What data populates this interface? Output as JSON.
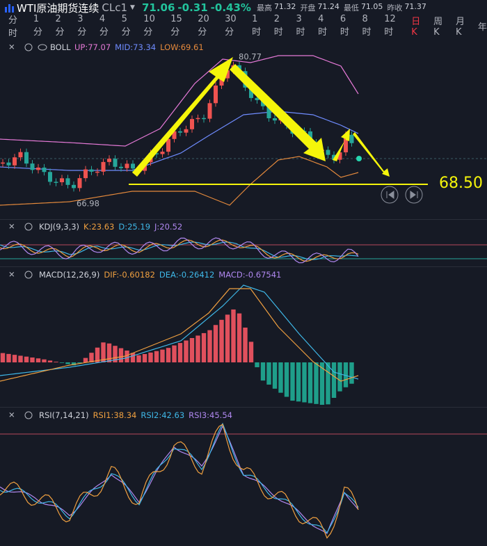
{
  "header": {
    "title": "WTI原油期货连续",
    "symbol": "CLc1",
    "price": "71.06",
    "change": "-0.31",
    "change_pct": "-0.43%",
    "stats": [
      {
        "label": "最高",
        "value": "71.32"
      },
      {
        "label": "开盘",
        "value": "71.24"
      },
      {
        "label": "最低",
        "value": "71.05"
      },
      {
        "label": "昨收",
        "value": "71.37"
      }
    ]
  },
  "timeframes": [
    "分时",
    "1分",
    "2分",
    "3分",
    "4分",
    "5分",
    "10分",
    "15分",
    "20分",
    "30分",
    "1时",
    "2时",
    "3时",
    "4时",
    "6时",
    "8时",
    "12时",
    "日K",
    "周K",
    "月K",
    "年"
  ],
  "panels": {
    "boll": {
      "name": "BOLL",
      "items": [
        "UP:77.07",
        "MID:73.34",
        "LOW:69.61"
      ],
      "high_label": "80.77",
      "low_label": "66.98",
      "target": "68.50"
    },
    "kdj": {
      "name": "KDJ(9,3,3)",
      "items": [
        "K:23.63",
        "D:25.19",
        "J:20.52"
      ]
    },
    "macd": {
      "name": "MACD(12,26,9)",
      "items": [
        "DIF:-0.60182",
        "DEA:-0.26412",
        "MACD:-0.67541"
      ]
    },
    "rsi": {
      "name": "RSI(7,14,21)",
      "items": [
        "RSI1:38.34",
        "RSI2:42.63",
        "RSI3:45.54"
      ]
    }
  }
}
